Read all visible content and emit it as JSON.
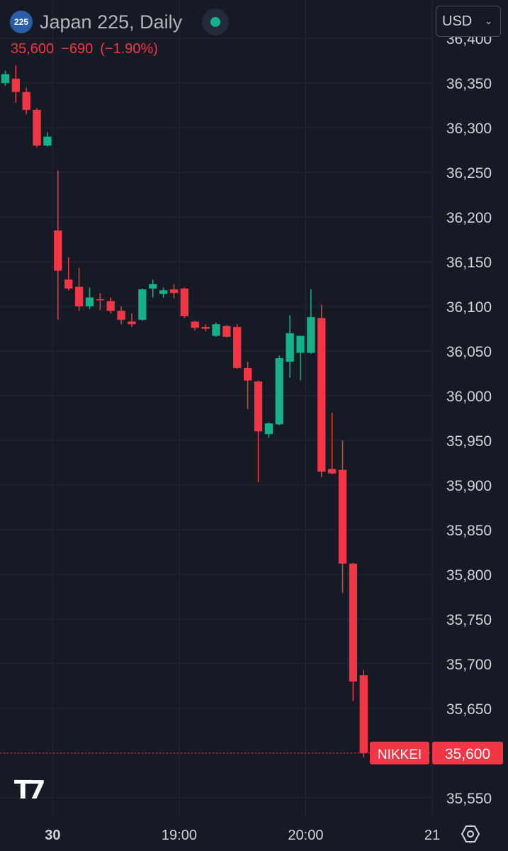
{
  "header": {
    "symbol_badge": "225",
    "title": "Japan 225, Daily",
    "last": "35,600",
    "change": "−690",
    "change_pct": "(−1.90%)"
  },
  "currency": {
    "label": "USD",
    "chevron": "chevron-down-icon"
  },
  "colors": {
    "background": "#161a24",
    "grid": "#242833",
    "up": "#14b18a",
    "down": "#f23645",
    "axis_text": "#d1d4dc"
  },
  "chart_data": {
    "type": "candlestick",
    "symbol": "Japan 225",
    "interval": "Daily",
    "y_ticks": [
      36400,
      36350,
      36300,
      36250,
      36200,
      36150,
      36100,
      36050,
      36000,
      35950,
      35900,
      35850,
      35800,
      35750,
      35700,
      35650,
      35600,
      35550
    ],
    "y_tick_labels": [
      "36,400",
      "36,350",
      "36,300",
      "36,250",
      "36,200",
      "36,150",
      "36,100",
      "36,050",
      "36,000",
      "35,950",
      "35,900",
      "35,850",
      "35,800",
      "35,750",
      "35,700",
      "35,650",
      "35,600",
      "35,550"
    ],
    "ylim": [
      35530,
      36443
    ],
    "x_ticks": [
      {
        "label": "30",
        "bar": 4.5,
        "bold": true
      },
      {
        "label": "19:00",
        "bar": 16.5,
        "bold": false
      },
      {
        "label": "20:00",
        "bar": 28.5,
        "bold": false
      },
      {
        "label": "21",
        "bar": 40.5,
        "bold": false
      }
    ],
    "bar_count_range": [
      -0.5,
      40.5
    ],
    "candles": [
      {
        "o": 36350,
        "h": 36364,
        "l": 36347,
        "c": 36360
      },
      {
        "o": 36355,
        "h": 36370,
        "l": 36328,
        "c": 36340
      },
      {
        "o": 36340,
        "h": 36345,
        "l": 36315,
        "c": 36320
      },
      {
        "o": 36320,
        "h": 36322,
        "l": 36278,
        "c": 36280
      },
      {
        "o": 36280,
        "h": 36295,
        "l": 36279,
        "c": 36290
      },
      {
        "o": 36185,
        "h": 36252,
        "l": 36085,
        "c": 36140
      },
      {
        "o": 36130,
        "h": 36155,
        "l": 36118,
        "c": 36120
      },
      {
        "o": 36122,
        "h": 36143,
        "l": 36095,
        "c": 36100
      },
      {
        "o": 36100,
        "h": 36121,
        "l": 36097,
        "c": 36110
      },
      {
        "o": 36108,
        "h": 36115,
        "l": 36096,
        "c": 36107
      },
      {
        "o": 36106,
        "h": 36110,
        "l": 36092,
        "c": 36095
      },
      {
        "o": 36095,
        "h": 36100,
        "l": 36080,
        "c": 36085
      },
      {
        "o": 36083,
        "h": 36092,
        "l": 36077,
        "c": 36080
      },
      {
        "o": 36085,
        "h": 36120,
        "l": 36084,
        "c": 36119
      },
      {
        "o": 36120,
        "h": 36130,
        "l": 36110,
        "c": 36125
      },
      {
        "o": 36114,
        "h": 36121,
        "l": 36110,
        "c": 36118
      },
      {
        "o": 36119,
        "h": 36125,
        "l": 36109,
        "c": 36115
      },
      {
        "o": 36120,
        "h": 36121,
        "l": 36087,
        "c": 36089
      },
      {
        "o": 36083,
        "h": 36084,
        "l": 36073,
        "c": 36076
      },
      {
        "o": 36077,
        "h": 36080,
        "l": 36072,
        "c": 36075
      },
      {
        "o": 36067,
        "h": 36082,
        "l": 36066,
        "c": 36080
      },
      {
        "o": 36078,
        "h": 36079,
        "l": 36065,
        "c": 36066
      },
      {
        "o": 36077,
        "h": 36080,
        "l": 36030,
        "c": 36031
      },
      {
        "o": 36031,
        "h": 36038,
        "l": 35985,
        "c": 36017
      },
      {
        "o": 36016,
        "h": 36017,
        "l": 35903,
        "c": 35960
      },
      {
        "o": 35957,
        "h": 35970,
        "l": 35953,
        "c": 35969
      },
      {
        "o": 35968,
        "h": 36045,
        "l": 35967,
        "c": 36042
      },
      {
        "o": 36038,
        "h": 36090,
        "l": 36020,
        "c": 36070
      },
      {
        "o": 36048,
        "h": 36067,
        "l": 36017,
        "c": 36067
      },
      {
        "o": 36048,
        "h": 36119,
        "l": 36047,
        "c": 36088
      },
      {
        "o": 36087,
        "h": 36102,
        "l": 35909,
        "c": 35915
      },
      {
        "o": 35918,
        "h": 35981,
        "l": 35912,
        "c": 35913
      },
      {
        "o": 35917,
        "h": 35950,
        "l": 35779,
        "c": 35812
      },
      {
        "o": 35812,
        "h": 35813,
        "l": 35658,
        "c": 35680
      },
      {
        "o": 35687,
        "h": 35693,
        "l": 35595,
        "c": 35600
      }
    ],
    "price_line": {
      "value": 35600,
      "label": "NIKKEI",
      "price_label": "35,600"
    }
  },
  "branding": {
    "logo": "tradingview-logo"
  },
  "footer": {
    "settings_icon": "settings-icon"
  }
}
